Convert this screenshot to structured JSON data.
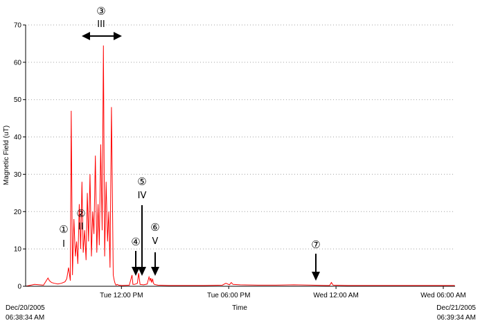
{
  "chart_data": {
    "type": "line",
    "title": "",
    "xlabel": "Time",
    "ylabel": "Magnetic Field (uT)",
    "ylim": [
      0,
      70
    ],
    "yticks": [
      0,
      10,
      20,
      30,
      40,
      50,
      60,
      70
    ],
    "grid": "horizontal dotted",
    "x_start": {
      "date": "Dec/20/2005",
      "time": "06:38:34 AM"
    },
    "x_end": {
      "date": "Dec/21/2005",
      "time": "06:39:34 AM"
    },
    "xticks": [
      {
        "hours": 5.358,
        "label": "Tue 12:00 PM"
      },
      {
        "hours": 11.358,
        "label": "Tue 06:00 PM"
      },
      {
        "hours": 17.358,
        "label": "Wed 12:00 AM"
      },
      {
        "hours": 23.358,
        "label": "Wed 06:00 AM"
      }
    ],
    "series": [
      {
        "color": "#ff0000",
        "x_hours": [
          0.0,
          0.5,
          1.0,
          1.25,
          1.33,
          1.45,
          1.6,
          1.8,
          2.0,
          2.2,
          2.3,
          2.4,
          2.5,
          2.55,
          2.62,
          2.7,
          2.78,
          2.85,
          2.92,
          3.0,
          3.08,
          3.15,
          3.22,
          3.3,
          3.38,
          3.45,
          3.52,
          3.6,
          3.68,
          3.75,
          3.82,
          3.9,
          3.98,
          4.05,
          4.12,
          4.2,
          4.28,
          4.35,
          4.42,
          4.5,
          4.58,
          4.65,
          4.72,
          4.8,
          4.9,
          4.96,
          5.0,
          5.05,
          5.12,
          5.2,
          5.4,
          5.8,
          5.95,
          6.0,
          6.1,
          6.25,
          6.32,
          6.4,
          6.6,
          6.8,
          6.9,
          6.96,
          7.0,
          7.05,
          7.1,
          7.15,
          7.2,
          7.4,
          8.0,
          9.0,
          10.0,
          11.0,
          11.2,
          11.4,
          11.5,
          11.6,
          12.0,
          13.0,
          14.0,
          15.0,
          16.0,
          16.8,
          17.0,
          17.1,
          17.2,
          18.0,
          20.0,
          22.0,
          24.0
        ],
        "y": [
          0,
          0.5,
          0.3,
          2.2,
          1.5,
          1.0,
          0.8,
          0.6,
          0.8,
          1.2,
          2.0,
          5.0,
          1.5,
          47.0,
          3.0,
          18.0,
          8.0,
          12.0,
          6.0,
          22.0,
          10.0,
          28.0,
          9.0,
          15.0,
          7.0,
          25.0,
          12.0,
          30.0,
          8.0,
          20.0,
          14.0,
          35.0,
          9.0,
          22.0,
          11.0,
          38.0,
          15.0,
          64.5,
          8.0,
          28.0,
          12.0,
          20.0,
          5.0,
          48.0,
          3.0,
          1.5,
          0.8,
          0.3,
          0.5,
          0.3,
          0.2,
          0.3,
          3.0,
          0.5,
          0.5,
          0.8,
          3.5,
          0.5,
          0.4,
          0.6,
          2.5,
          1.5,
          2.2,
          1.0,
          2.0,
          0.8,
          0.5,
          0.3,
          0.2,
          0.2,
          0.2,
          0.3,
          0.8,
          0.4,
          1.0,
          0.5,
          0.4,
          0.3,
          0.3,
          0.4,
          0.3,
          0.2,
          0.2,
          1.0,
          0.3,
          0.2,
          0.2,
          0.2,
          0.2
        ]
      }
    ],
    "annotations": [
      {
        "marker": "①",
        "label": "I",
        "arrow": "none"
      },
      {
        "marker": "②",
        "label": "II",
        "arrow": "none"
      },
      {
        "marker": "③",
        "label": "III",
        "arrow": "double-horizontal"
      },
      {
        "marker": "④",
        "label": "",
        "arrow": "down"
      },
      {
        "marker": "⑤",
        "label": "IV",
        "arrow": "down"
      },
      {
        "marker": "⑥",
        "label": "V",
        "arrow": "down"
      },
      {
        "marker": "⑦",
        "label": "",
        "arrow": "down"
      }
    ]
  }
}
